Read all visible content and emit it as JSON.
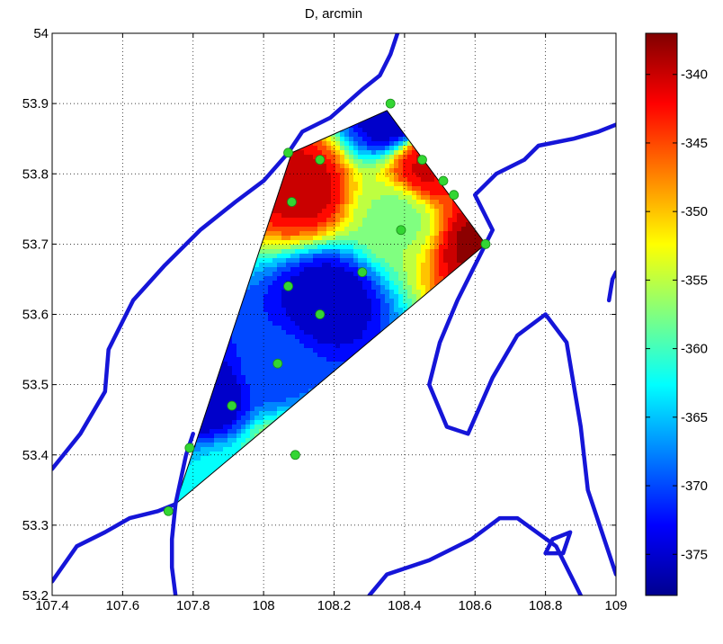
{
  "chart_data": {
    "type": "contour",
    "title": "D, arcmin",
    "xlabel": "",
    "ylabel": "",
    "xlim": [
      107.4,
      109
    ],
    "ylim": [
      53.2,
      54
    ],
    "xticks": [
      "107.4",
      "107.6",
      "107.8",
      "108",
      "108.2",
      "108.4",
      "108.6",
      "108.8",
      "109"
    ],
    "yticks": [
      "53.2",
      "53.3",
      "53.4",
      "53.5",
      "53.6",
      "53.7",
      "53.8",
      "53.9",
      "54"
    ],
    "grid": true,
    "colorbar": {
      "clim": [
        -378,
        -337
      ],
      "ticks": [
        "-340",
        "-345",
        "-350",
        "-355",
        "-360",
        "-365",
        "-370",
        "-375"
      ],
      "colormap": "jet"
    },
    "survey_region": [
      [
        107.75,
        53.33
      ],
      [
        108.08,
        53.83
      ],
      [
        108.35,
        53.89
      ],
      [
        108.63,
        53.7
      ],
      [
        107.75,
        53.33
      ]
    ],
    "stations": [
      {
        "lon": 108.36,
        "lat": 53.9
      },
      {
        "lon": 108.07,
        "lat": 53.83
      },
      {
        "lon": 108.16,
        "lat": 53.82
      },
      {
        "lon": 108.45,
        "lat": 53.82
      },
      {
        "lon": 108.51,
        "lat": 53.79
      },
      {
        "lon": 108.54,
        "lat": 53.77
      },
      {
        "lon": 108.08,
        "lat": 53.76
      },
      {
        "lon": 108.39,
        "lat": 53.72
      },
      {
        "lon": 108.63,
        "lat": 53.7
      },
      {
        "lon": 108.28,
        "lat": 53.66
      },
      {
        "lon": 108.07,
        "lat": 53.64
      },
      {
        "lon": 108.16,
        "lat": 53.6
      },
      {
        "lon": 108.04,
        "lat": 53.53
      },
      {
        "lon": 107.91,
        "lat": 53.47
      },
      {
        "lon": 107.79,
        "lat": 53.41
      },
      {
        "lon": 108.09,
        "lat": 53.4
      },
      {
        "lon": 107.73,
        "lat": 53.32
      }
    ],
    "field_extrema": [
      {
        "lon": 108.36,
        "lat": 53.88,
        "value": -376
      },
      {
        "lon": 108.11,
        "lat": 53.78,
        "value": -340
      },
      {
        "lon": 108.46,
        "lat": 53.81,
        "value": -341
      },
      {
        "lon": 108.62,
        "lat": 53.7,
        "value": -338
      },
      {
        "lon": 108.18,
        "lat": 53.62,
        "value": -376
      },
      {
        "lon": 107.85,
        "lat": 53.48,
        "value": -376
      },
      {
        "lon": 108.03,
        "lat": 53.52,
        "value": -370
      },
      {
        "lon": 107.9,
        "lat": 53.36,
        "value": -362
      },
      {
        "lon": 108.05,
        "lat": 53.4,
        "value": -356
      },
      {
        "lon": 108.38,
        "lat": 53.74,
        "value": -357
      }
    ],
    "field_background": -363,
    "coastlines": [
      [
        [
          107.4,
          53.38
        ],
        [
          107.48,
          53.43
        ],
        [
          107.55,
          53.49
        ],
        [
          107.56,
          53.55
        ],
        [
          107.63,
          53.62
        ],
        [
          107.72,
          53.67
        ],
        [
          107.82,
          53.72
        ],
        [
          107.92,
          53.76
        ],
        [
          108.0,
          53.79
        ],
        [
          108.07,
          53.83
        ]
      ],
      [
        [
          108.07,
          53.83
        ],
        [
          108.11,
          53.86
        ],
        [
          108.19,
          53.88
        ],
        [
          108.28,
          53.92
        ],
        [
          108.33,
          53.94
        ],
        [
          108.36,
          53.97
        ],
        [
          108.38,
          54.0
        ]
      ],
      [
        [
          107.75,
          53.33
        ],
        [
          107.78,
          53.4
        ],
        [
          107.8,
          53.43
        ]
      ],
      [
        [
          107.4,
          53.22
        ],
        [
          107.47,
          53.27
        ],
        [
          107.55,
          53.29
        ],
        [
          107.62,
          53.31
        ],
        [
          107.7,
          53.32
        ],
        [
          107.75,
          53.33
        ],
        [
          107.74,
          53.28
        ],
        [
          107.74,
          53.24
        ],
        [
          107.75,
          53.2
        ]
      ],
      [
        [
          108.63,
          53.7
        ],
        [
          108.59,
          53.66
        ],
        [
          108.55,
          53.62
        ],
        [
          108.5,
          53.56
        ],
        [
          108.47,
          53.5
        ],
        [
          108.52,
          53.44
        ],
        [
          108.58,
          53.43
        ],
        [
          108.65,
          53.51
        ],
        [
          108.72,
          53.57
        ],
        [
          108.8,
          53.6
        ],
        [
          108.86,
          53.56
        ],
        [
          108.9,
          53.44
        ],
        [
          108.92,
          53.35
        ],
        [
          108.98,
          53.26
        ],
        [
          109.0,
          53.23
        ]
      ],
      [
        [
          108.63,
          53.7
        ],
        [
          108.65,
          53.72
        ],
        [
          108.6,
          53.77
        ],
        [
          108.66,
          53.8
        ],
        [
          108.74,
          53.82
        ],
        [
          108.78,
          53.84
        ],
        [
          108.88,
          53.85
        ],
        [
          108.95,
          53.86
        ],
        [
          109.0,
          53.87
        ]
      ],
      [
        [
          108.98,
          53.62
        ],
        [
          108.99,
          53.65
        ],
        [
          109.0,
          53.66
        ]
      ],
      [
        [
          108.3,
          53.2
        ],
        [
          108.35,
          53.23
        ],
        [
          108.47,
          53.25
        ],
        [
          108.59,
          53.28
        ],
        [
          108.67,
          53.31
        ],
        [
          108.72,
          53.31
        ],
        [
          108.83,
          53.27
        ],
        [
          108.88,
          53.22
        ],
        [
          108.9,
          53.2
        ]
      ],
      [
        [
          108.82,
          53.28
        ],
        [
          108.87,
          53.29
        ],
        [
          108.85,
          53.26
        ],
        [
          108.8,
          53.26
        ],
        [
          108.82,
          53.28
        ]
      ]
    ]
  }
}
